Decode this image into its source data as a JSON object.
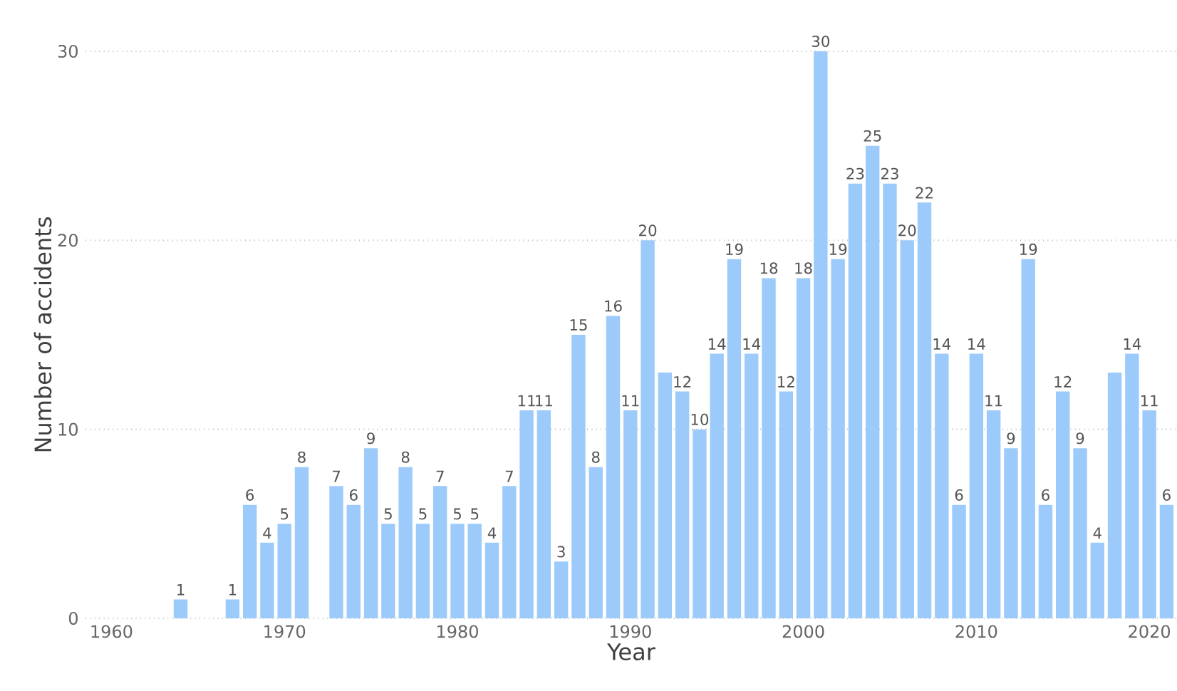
{
  "chart_data": {
    "type": "bar",
    "xlabel": "Year",
    "ylabel": "Number of accidents",
    "x": [
      1964,
      1967,
      1968,
      1969,
      1970,
      1971,
      1973,
      1974,
      1975,
      1976,
      1977,
      1978,
      1979,
      1980,
      1981,
      1982,
      1983,
      1984,
      1985,
      1986,
      1987,
      1988,
      1989,
      1990,
      1991,
      1992,
      1993,
      1994,
      1995,
      1996,
      1997,
      1998,
      1999,
      2000,
      2001,
      2002,
      2003,
      2004,
      2005,
      2006,
      2007,
      2008,
      2009,
      2010,
      2011,
      2012,
      2013,
      2014,
      2015,
      2016,
      2017,
      2018,
      2019,
      2020,
      2021
    ],
    "values": [
      1,
      1,
      6,
      4,
      5,
      8,
      7,
      6,
      9,
      5,
      8,
      5,
      7,
      5,
      5,
      4,
      7,
      11,
      11,
      3,
      15,
      8,
      16,
      11,
      20,
      13,
      12,
      10,
      14,
      19,
      14,
      18,
      12,
      18,
      30,
      19,
      23,
      25,
      23,
      20,
      22,
      14,
      6,
      14,
      11,
      9,
      19,
      6,
      12,
      9,
      4,
      13,
      14,
      11,
      6
    ],
    "value_labels": [
      "1",
      "1",
      "6",
      "4",
      "5",
      "8",
      "7",
      "6",
      "9",
      "5",
      "8",
      "5",
      "7",
      "5",
      "5",
      "4",
      "7",
      "11",
      "11",
      "3",
      "15",
      "8",
      "16",
      "11",
      "20",
      null,
      "12",
      "10",
      "14",
      "19",
      "14",
      "18",
      "12",
      "18",
      "30",
      "19",
      "23",
      "25",
      "23",
      "20",
      "22",
      "14",
      "6",
      "14",
      "11",
      "9",
      "19",
      "6",
      "12",
      "9",
      "4",
      null,
      "14",
      "11",
      "6"
    ],
    "color": "#9ccbfb",
    "xlim": [
      1958.5,
      2021.6
    ],
    "ylim": [
      0,
      30
    ],
    "xticks": [
      1960,
      1970,
      1980,
      1990,
      2000,
      2010,
      2020
    ],
    "yticks": [
      0,
      10,
      20,
      30
    ],
    "grid": "y"
  }
}
